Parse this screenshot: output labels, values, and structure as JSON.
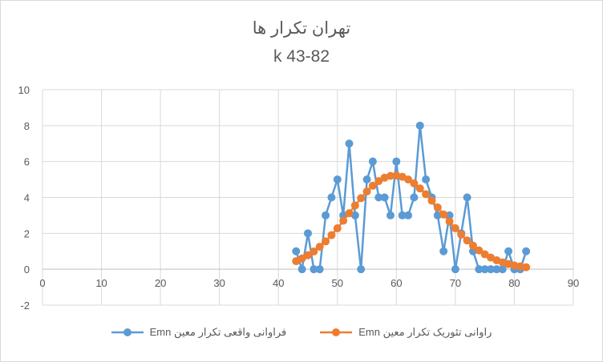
{
  "chart_data": {
    "type": "scatter",
    "title": "تهران تکرار ها",
    "subtitle": "k 43-82",
    "xlabel": "",
    "ylabel": "",
    "xlim": [
      0,
      90
    ],
    "ylim": [
      -2,
      10
    ],
    "x_ticks": [
      "0",
      "10",
      "20",
      "30",
      "40",
      "50",
      "60",
      "70",
      "80",
      "90"
    ],
    "y_ticks": [
      "-2",
      "0",
      "2",
      "4",
      "6",
      "8",
      "10"
    ],
    "grid": true,
    "legend_position": "bottom",
    "series": [
      {
        "name": "فراوانی واقعی تکرار معین Emn",
        "color": "#5b9bd5",
        "x": [
          43,
          44,
          45,
          46,
          47,
          48,
          49,
          50,
          51,
          52,
          53,
          54,
          55,
          56,
          57,
          58,
          59,
          60,
          61,
          62,
          63,
          64,
          65,
          66,
          67,
          68,
          69,
          70,
          71,
          72,
          73,
          74,
          75,
          76,
          77,
          78,
          79,
          80,
          81,
          82
        ],
        "y": [
          1,
          0,
          2,
          0,
          0,
          3,
          4,
          5,
          3,
          7,
          3,
          0,
          5,
          6,
          4,
          4,
          3,
          6,
          3,
          3,
          4,
          8,
          5,
          4,
          3,
          1,
          3,
          0,
          2,
          4,
          1,
          0,
          0,
          0,
          0,
          0,
          1,
          0,
          0,
          1
        ]
      },
      {
        "name": "راوانی تئوریک تکرار معین Emn",
        "color": "#ed7d31",
        "x": [
          43,
          44,
          45,
          46,
          47,
          48,
          49,
          50,
          51,
          52,
          53,
          54,
          55,
          56,
          57,
          58,
          59,
          60,
          61,
          62,
          63,
          64,
          65,
          66,
          67,
          68,
          69,
          70,
          71,
          72,
          73,
          74,
          75,
          76,
          77,
          78,
          79,
          80,
          81,
          82
        ],
        "y": [
          0.45,
          0.6,
          0.78,
          0.99,
          1.25,
          1.55,
          1.9,
          2.28,
          2.7,
          3.12,
          3.55,
          3.96,
          4.33,
          4.65,
          4.91,
          5.1,
          5.2,
          5.22,
          5.15,
          5.0,
          4.78,
          4.5,
          4.18,
          3.82,
          3.44,
          3.05,
          2.66,
          2.28,
          1.93,
          1.6,
          1.31,
          1.05,
          0.83,
          0.65,
          0.5,
          0.38,
          0.29,
          0.21,
          0.16,
          0.11
        ]
      }
    ]
  }
}
